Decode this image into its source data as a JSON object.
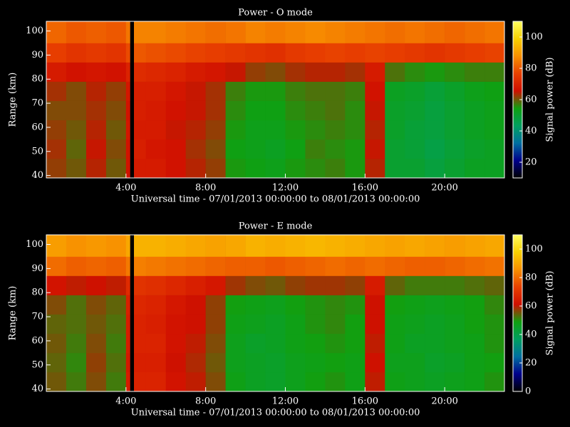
{
  "chart_data": [
    {
      "type": "heatmap",
      "title": "Power - O mode",
      "xlabel": "Universal time - 07/01/2013 00:00:00 to 08/01/2013 00:00:00",
      "ylabel": "Range (km)",
      "colorbar_label": "Signal power (dB)",
      "x_edges": [
        0,
        1,
        2,
        3,
        4,
        4.2,
        4.4,
        5,
        6,
        7,
        8,
        9,
        10,
        11,
        12,
        13,
        14,
        15,
        16,
        17,
        18,
        19,
        20,
        21,
        22,
        23
      ],
      "y_edges": [
        39,
        47,
        55,
        63,
        71,
        79,
        87,
        95,
        104
      ],
      "z": [
        [
          62,
          60,
          64,
          60,
          66,
          null,
          68,
          68,
          66,
          64,
          62,
          55,
          54,
          53,
          55,
          56,
          57,
          55,
          64,
          50,
          50,
          48,
          50,
          52,
          52
        ],
        [
          63,
          59,
          65,
          61,
          66,
          null,
          69,
          67,
          66,
          63,
          61,
          54,
          53,
          52,
          54,
          57,
          56,
          55,
          65,
          50,
          49,
          47,
          49,
          51,
          52
        ],
        [
          62,
          60,
          64,
          60,
          67,
          null,
          68,
          68,
          65,
          64,
          62,
          55,
          53,
          53,
          55,
          56,
          57,
          56,
          64,
          51,
          49,
          48,
          50,
          52,
          53
        ],
        [
          61,
          61,
          63,
          61,
          66,
          null,
          69,
          68,
          66,
          65,
          63,
          56,
          54,
          54,
          56,
          57,
          58,
          56,
          65,
          51,
          50,
          48,
          50,
          52,
          53
        ],
        [
          63,
          61,
          64,
          62,
          67,
          null,
          69,
          69,
          67,
          65,
          63,
          57,
          55,
          55,
          57,
          58,
          58,
          57,
          66,
          52,
          51,
          49,
          51,
          53,
          54
        ],
        [
          68,
          66,
          67,
          66,
          70,
          null,
          72,
          71,
          70,
          68,
          67,
          65,
          62,
          61,
          63,
          64,
          64,
          63,
          68,
          58,
          56,
          55,
          56,
          57,
          57
        ],
        [
          76,
          74,
          75,
          74,
          78,
          null,
          80,
          79,
          78,
          77,
          76,
          75,
          74,
          73,
          75,
          76,
          77,
          76,
          77,
          76,
          75,
          74,
          75,
          76,
          77
        ],
        [
          82,
          80,
          81,
          80,
          84,
          null,
          86,
          86,
          85,
          84,
          83,
          84,
          86,
          85,
          86,
          87,
          86,
          85,
          84,
          83,
          84,
          83,
          82,
          83,
          84
        ]
      ],
      "xlim": [
        0,
        23
      ],
      "ylim": [
        39,
        104
      ],
      "xticks": [
        {
          "value": 4,
          "label": "4:00"
        },
        {
          "value": 8,
          "label": "8:00"
        },
        {
          "value": 12,
          "label": "12:00"
        },
        {
          "value": 16,
          "label": "16:00"
        },
        {
          "value": 20,
          "label": "20:00"
        }
      ],
      "yticks": [
        40,
        50,
        60,
        70,
        80,
        90,
        100
      ],
      "clim": [
        10,
        110
      ],
      "cticks": [
        20,
        40,
        60,
        80,
        100
      ],
      "colormap": [
        "#000000",
        "#00008c",
        "#0070a0",
        "#00a060",
        "#10a010",
        "#d01000",
        "#e84000",
        "#f89000",
        "#f8d000",
        "#ffff60"
      ]
    },
    {
      "type": "heatmap",
      "title": "Power - E mode",
      "xlabel": "Universal time - 07/01/2013 00:00:00 to 08/01/2013 00:00:00",
      "ylabel": "Range (km)",
      "colorbar_label": "Signal power (dB)",
      "x_edges": [
        0,
        1,
        2,
        3,
        4,
        4.2,
        4.4,
        5,
        6,
        7,
        8,
        9,
        10,
        11,
        12,
        13,
        14,
        15,
        16,
        17,
        18,
        19,
        20,
        21,
        22,
        23
      ],
      "y_edges": [
        39,
        47,
        55,
        63,
        71,
        79,
        87,
        95,
        104
      ],
      "z": [
        [
          55,
          52,
          56,
          52,
          64,
          null,
          66,
          66,
          62,
          60,
          56,
          48,
          46,
          45,
          47,
          49,
          50,
          48,
          60,
          48,
          47,
          46,
          47,
          48,
          50
        ],
        [
          54,
          51,
          57,
          53,
          63,
          null,
          65,
          65,
          61,
          59,
          55,
          47,
          46,
          45,
          47,
          48,
          49,
          48,
          61,
          47,
          47,
          45,
          46,
          48,
          49
        ],
        [
          55,
          52,
          56,
          52,
          64,
          null,
          66,
          66,
          62,
          60,
          56,
          47,
          45,
          46,
          48,
          49,
          50,
          49,
          60,
          48,
          46,
          46,
          47,
          48,
          50
        ],
        [
          54,
          53,
          55,
          53,
          64,
          null,
          66,
          65,
          62,
          61,
          57,
          48,
          47,
          46,
          48,
          50,
          51,
          49,
          61,
          48,
          47,
          46,
          47,
          49,
          50
        ],
        [
          56,
          53,
          56,
          54,
          65,
          null,
          67,
          66,
          63,
          61,
          57,
          49,
          48,
          47,
          49,
          50,
          51,
          50,
          61,
          49,
          48,
          47,
          48,
          49,
          51
        ],
        [
          62,
          60,
          61,
          60,
          68,
          null,
          70,
          69,
          67,
          65,
          63,
          58,
          56,
          55,
          57,
          58,
          58,
          57,
          64,
          54,
          52,
          52,
          52,
          53,
          54
        ],
        [
          80,
          78,
          79,
          78,
          82,
          null,
          83,
          82,
          81,
          80,
          79,
          78,
          78,
          77,
          78,
          79,
          80,
          79,
          80,
          79,
          78,
          78,
          79,
          80,
          81
        ],
        [
          88,
          86,
          87,
          86,
          90,
          null,
          92,
          92,
          91,
          90,
          89,
          90,
          92,
          91,
          92,
          93,
          92,
          91,
          90,
          89,
          90,
          89,
          88,
          89,
          90
        ]
      ],
      "xlim": [
        0,
        23
      ],
      "ylim": [
        39,
        104
      ],
      "xticks": [
        {
          "value": 4,
          "label": "4:00"
        },
        {
          "value": 8,
          "label": "8:00"
        },
        {
          "value": 12,
          "label": "12:00"
        },
        {
          "value": 16,
          "label": "16:00"
        },
        {
          "value": 20,
          "label": "20:00"
        }
      ],
      "yticks": [
        40,
        50,
        60,
        70,
        80,
        90,
        100
      ],
      "clim": [
        0,
        110
      ],
      "cticks": [
        0,
        20,
        40,
        60,
        80,
        100
      ],
      "colormap": [
        "#000000",
        "#00008c",
        "#0070a0",
        "#00a060",
        "#10a010",
        "#d01000",
        "#e84000",
        "#f89000",
        "#f8d000",
        "#ffff60"
      ]
    }
  ]
}
